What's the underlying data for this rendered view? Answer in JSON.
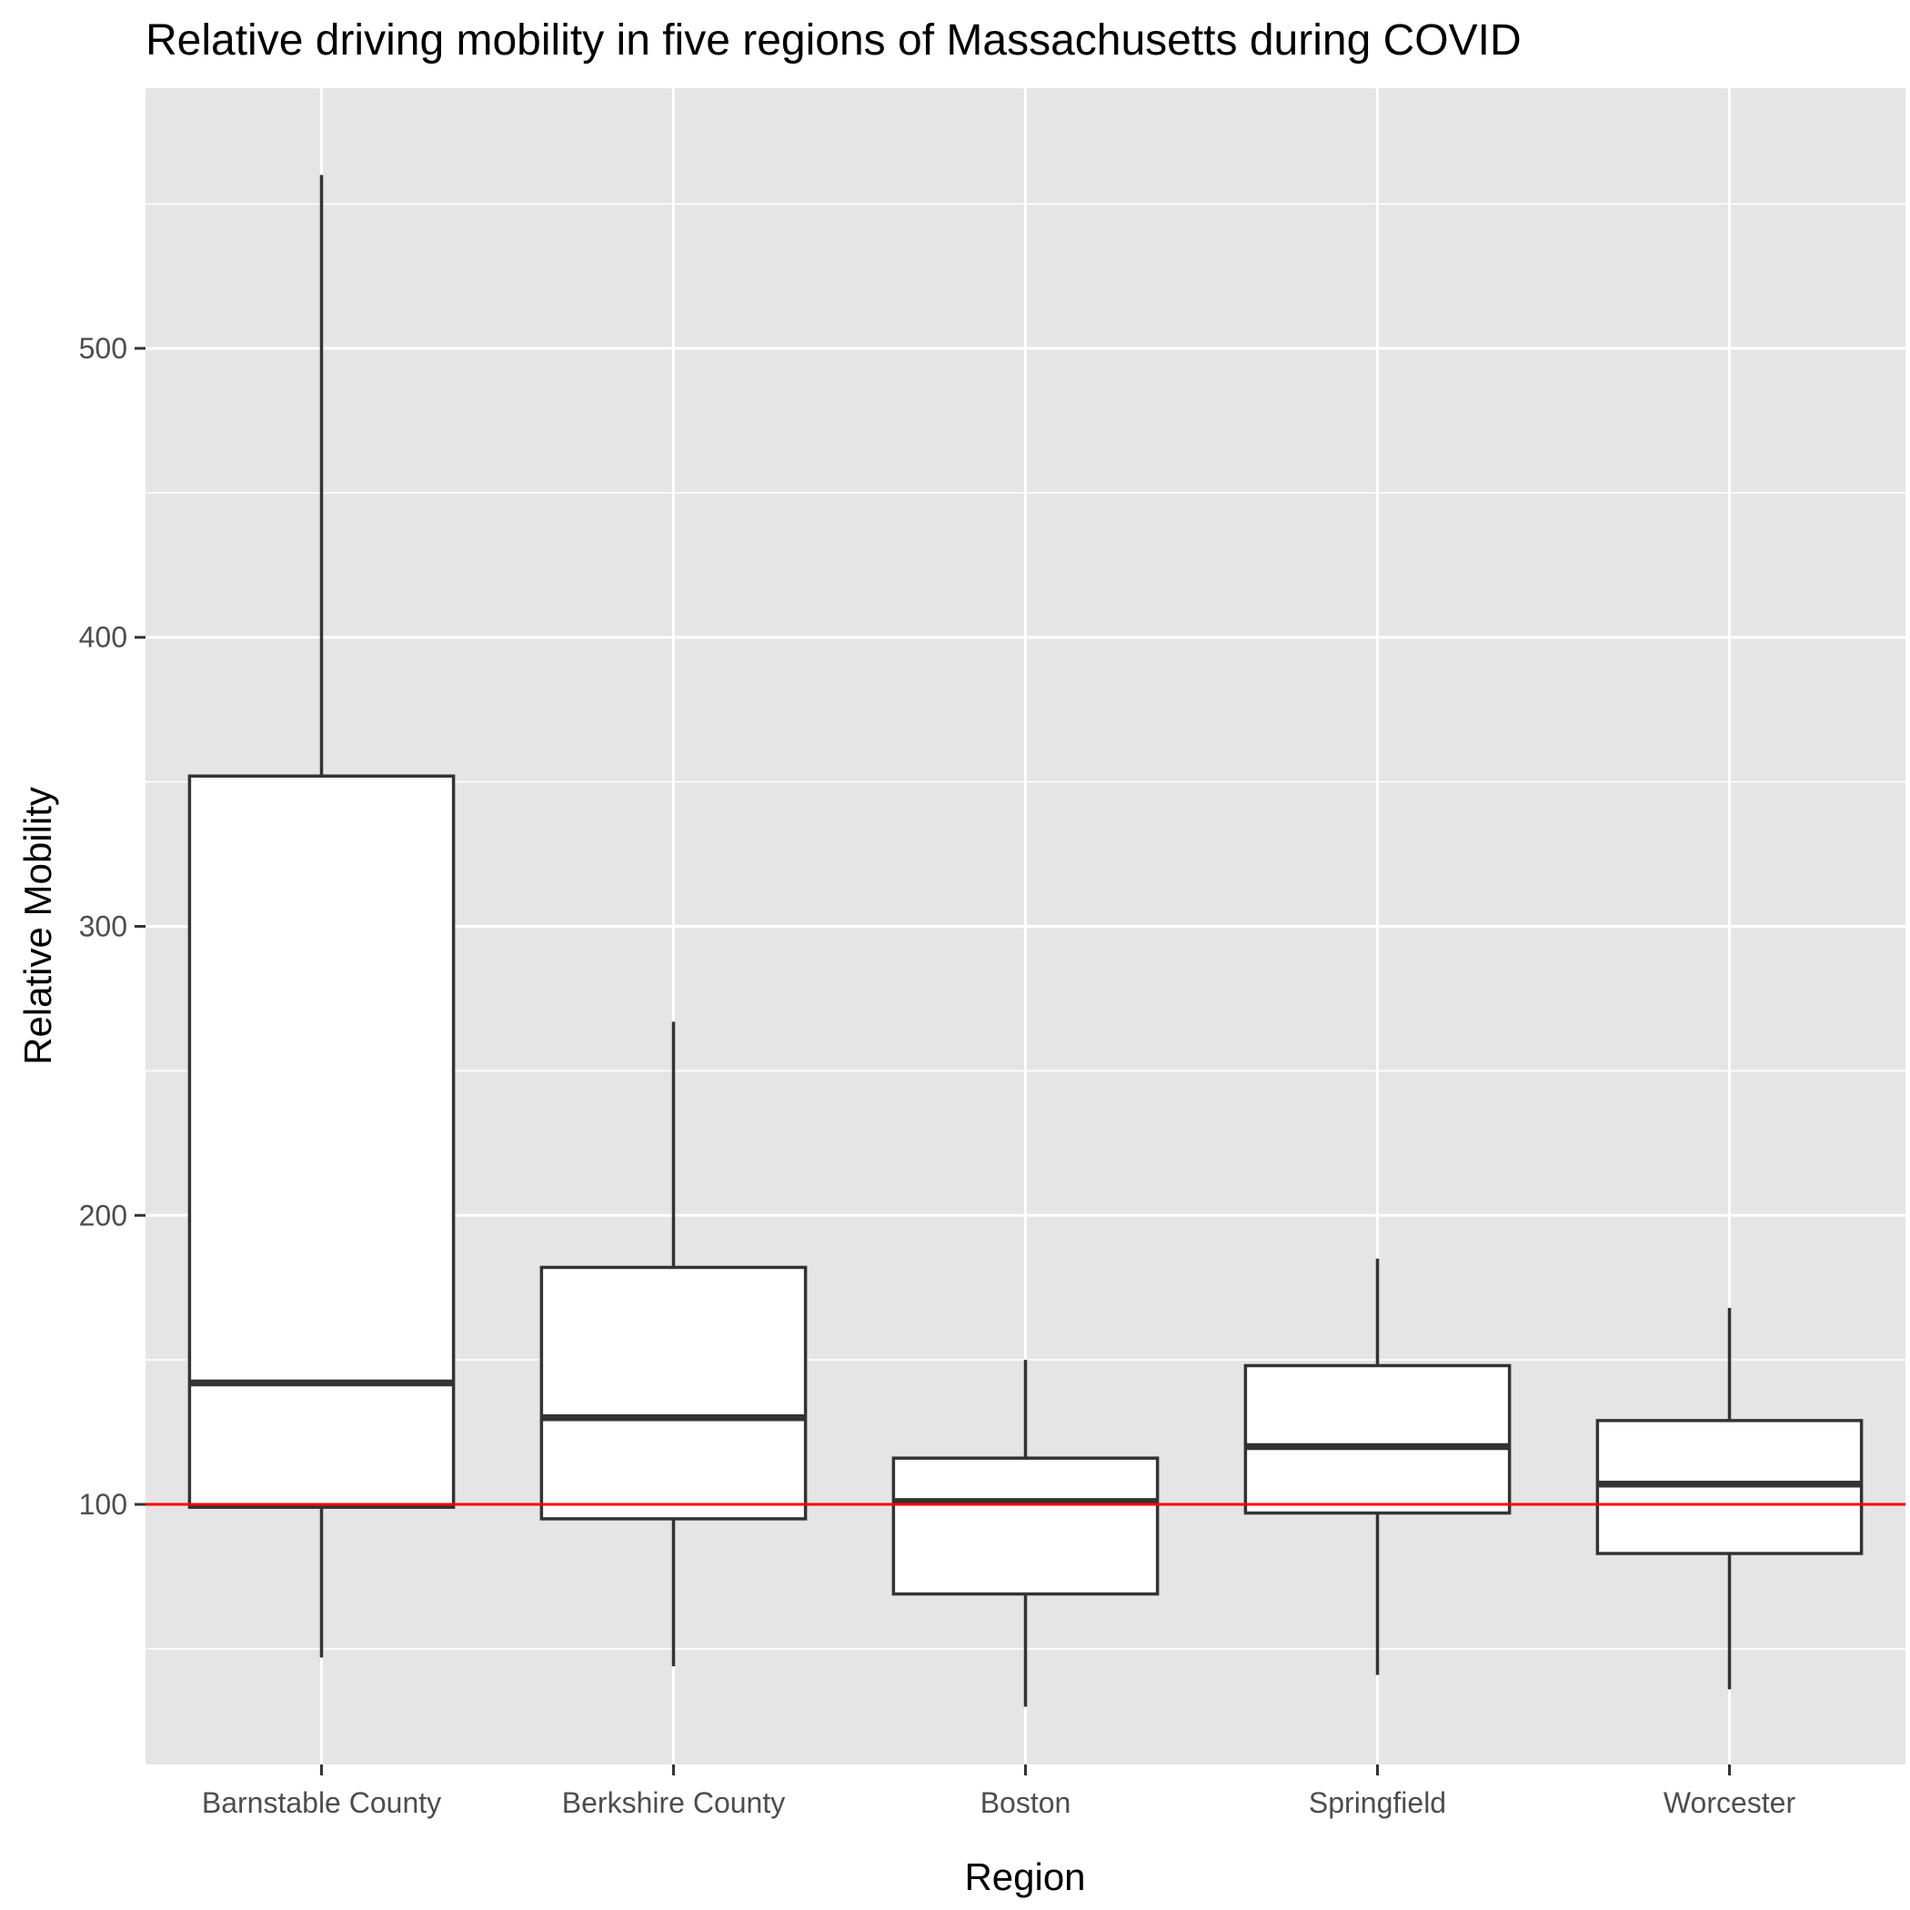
{
  "chart_data": {
    "type": "boxplot",
    "title": "Relative driving mobility in five regions of Massachusetts during COVID",
    "xlabel": "Region",
    "ylabel": "Relative Mobility",
    "categories": [
      "Barnstable County",
      "Berkshire County",
      "Boston",
      "Springfield",
      "Worcester"
    ],
    "boxes": [
      {
        "name": "Barnstable County",
        "whisker_low": 47,
        "q1": 99,
        "median": 142,
        "q3": 352,
        "whisker_high": 560
      },
      {
        "name": "Berkshire County",
        "whisker_low": 44,
        "q1": 95,
        "median": 130,
        "q3": 182,
        "whisker_high": 267
      },
      {
        "name": "Boston",
        "whisker_low": 30,
        "q1": 69,
        "median": 101,
        "q3": 116,
        "whisker_high": 150
      },
      {
        "name": "Springfield",
        "whisker_low": 41,
        "q1": 97,
        "median": 120,
        "q3": 148,
        "whisker_high": 185
      },
      {
        "name": "Worcester",
        "whisker_low": 36,
        "q1": 83,
        "median": 107,
        "q3": 129,
        "whisker_high": 168
      }
    ],
    "yticks": [
      100,
      200,
      300,
      400,
      500
    ],
    "ylim": [
      10,
      590
    ],
    "reference_line": {
      "y": 100,
      "color": "#ff0000"
    },
    "grid": true,
    "panel_background": "#e5e5e5"
  }
}
